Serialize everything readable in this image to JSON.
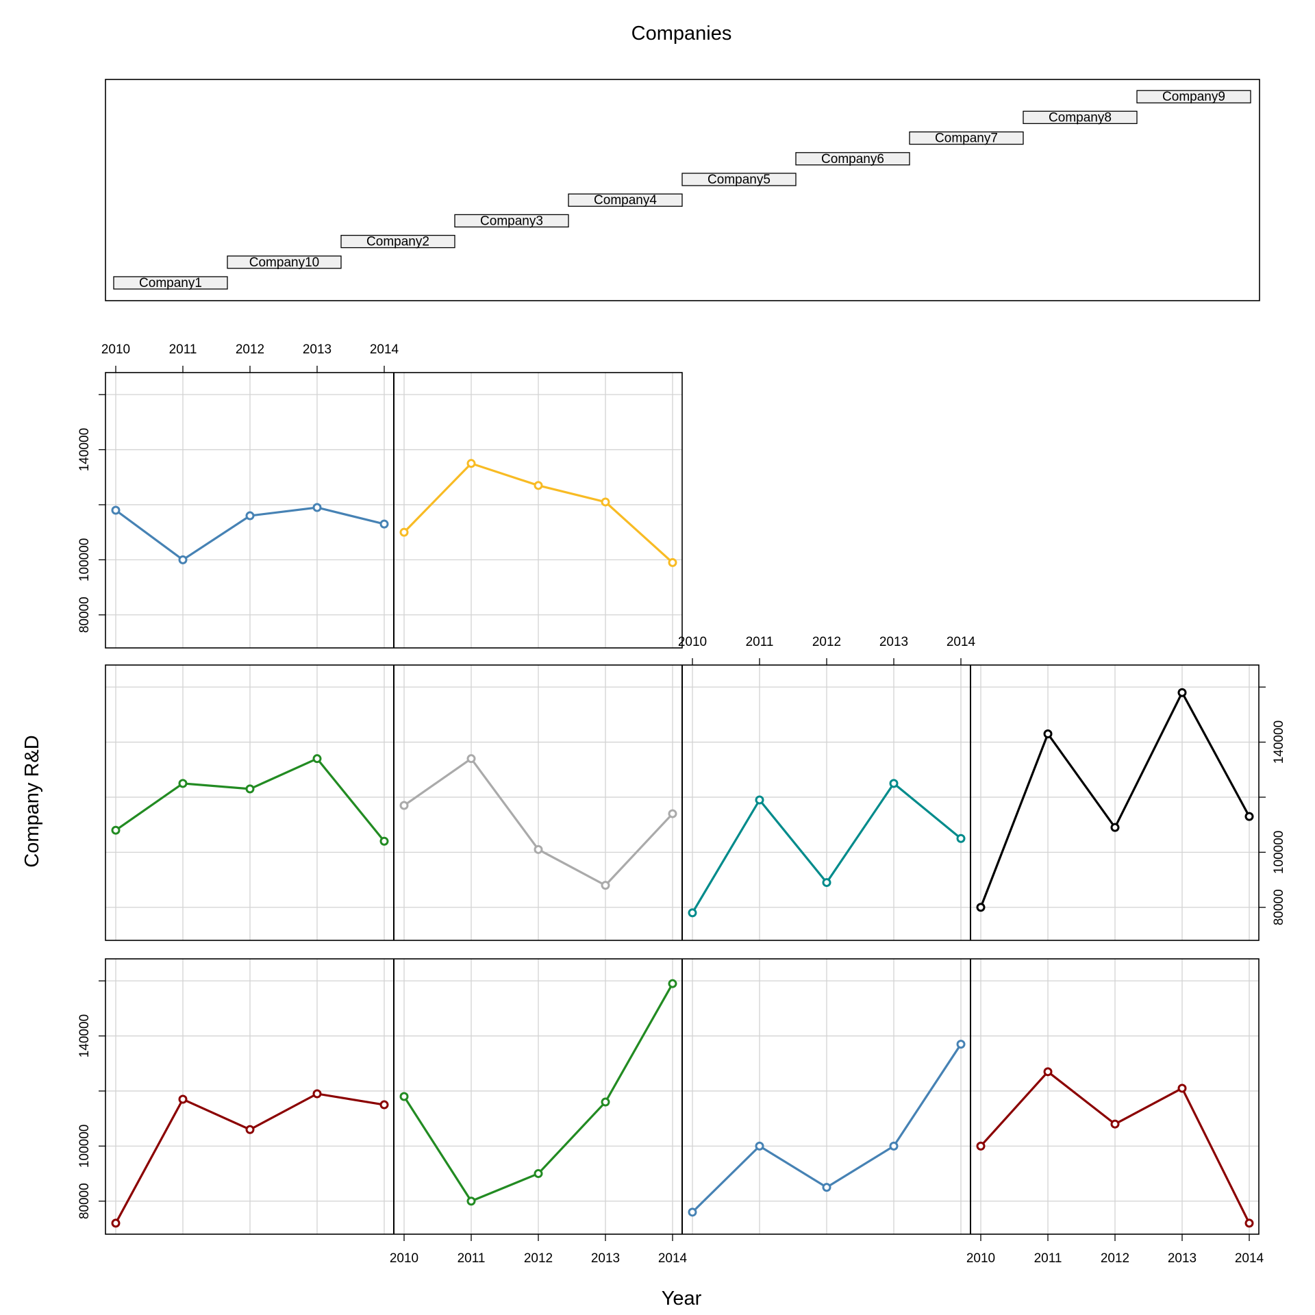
{
  "chart_data": {
    "type": "line",
    "title": "Companies",
    "xlabel": "Year",
    "ylabel": "Company R&D",
    "x": [
      "2010",
      "2011",
      "2012",
      "2013",
      "2014"
    ],
    "y_ticks": [
      "80000",
      "100000",
      "140000"
    ],
    "ylim": [
      68000,
      168000
    ],
    "grid": true,
    "panel_order": [
      "Company1",
      "Company10",
      "Company2",
      "Company3",
      "Company4",
      "Company5",
      "Company6",
      "Company7",
      "Company8",
      "Company9"
    ],
    "series": [
      {
        "name": "Company1",
        "color": "#8b0000",
        "values": [
          72000,
          117000,
          106000,
          119000,
          115000
        ]
      },
      {
        "name": "Company10",
        "color": "#228b22",
        "values": [
          118000,
          80000,
          90000,
          116000,
          159000
        ]
      },
      {
        "name": "Company2",
        "color": "#4682b4",
        "values": [
          76000,
          100000,
          85000,
          100000,
          137000
        ]
      },
      {
        "name": "Company3",
        "color": "#8b0000",
        "values": [
          100000,
          127000,
          108000,
          121000,
          72000
        ]
      },
      {
        "name": "Company4",
        "color": "#228b22",
        "values": [
          108000,
          125000,
          123000,
          134000,
          104000
        ]
      },
      {
        "name": "Company5",
        "color": "#aaaaaa",
        "values": [
          117000,
          134000,
          101000,
          88000,
          114000
        ]
      },
      {
        "name": "Company6",
        "color": "#008b8b",
        "values": [
          78000,
          119000,
          89000,
          125000,
          105000
        ]
      },
      {
        "name": "Company7",
        "color": "#000000",
        "values": [
          80000,
          143000,
          109000,
          158000,
          113000
        ]
      },
      {
        "name": "Company8",
        "color": "#4682b4",
        "values": [
          118000,
          100000,
          116000,
          119000,
          113000
        ]
      },
      {
        "name": "Company9",
        "color": "#f8bb24",
        "values": [
          110000,
          135000,
          127000,
          121000,
          99000
        ]
      }
    ]
  }
}
